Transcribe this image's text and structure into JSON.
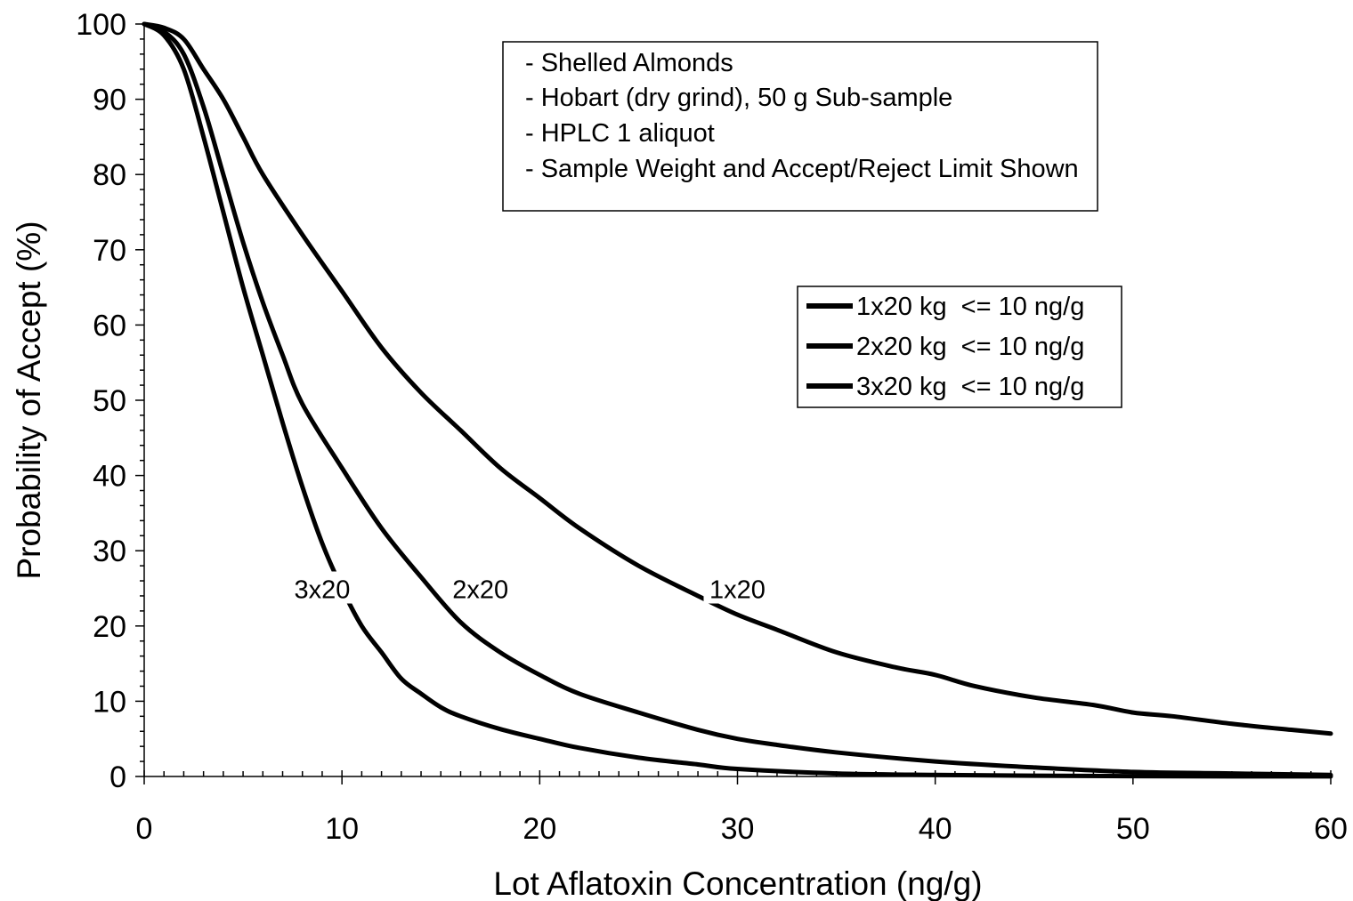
{
  "chart_data": {
    "type": "line",
    "title": "",
    "xlabel": "Lot Aflatoxin Concentration (ng/g)",
    "ylabel": "Probability of Accept (%)",
    "xlim": [
      0,
      60
    ],
    "ylim": [
      0,
      100
    ],
    "xticks": [
      0,
      10,
      20,
      30,
      40,
      50,
      60
    ],
    "yticks": [
      0,
      10,
      20,
      30,
      40,
      50,
      60,
      70,
      80,
      90,
      100
    ],
    "grid": false,
    "line_color": "#000000",
    "annotation_box": {
      "lines": [
        "- Shelled Almonds",
        "- Hobart (dry grind), 50 g Sub-sample",
        "- HPLC 1 aliquot",
        "- Sample Weight and Accept/Reject Limit Shown"
      ]
    },
    "legend": {
      "placement": "right-middle",
      "entries": [
        "1x20 kg  <= 10 ng/g",
        "2x20 kg  <= 10 ng/g",
        "3x20 kg  <= 10 ng/g"
      ]
    },
    "series": [
      {
        "name": "1x20 kg  <= 10 ng/g",
        "curve_label": "1x20",
        "label_at": [
          30,
          25
        ],
        "x": [
          0,
          1,
          2,
          3,
          4,
          5,
          6,
          8,
          10,
          12,
          14,
          16,
          18,
          20,
          22,
          25,
          28,
          30,
          32,
          35,
          38,
          40,
          42,
          45,
          48,
          50,
          52,
          55,
          58,
          60
        ],
        "y": [
          100,
          99.5,
          98,
          94,
          90,
          85,
          80,
          72,
          64.5,
          57,
          51,
          46,
          41,
          37,
          33,
          28,
          24,
          21.5,
          19.5,
          16.5,
          14.5,
          13.5,
          12,
          10.5,
          9.5,
          8.5,
          8,
          7,
          6.2,
          5.7
        ]
      },
      {
        "name": "2x20 kg  <= 10 ng/g",
        "curve_label": "2x20",
        "label_at": [
          17,
          25
        ],
        "x": [
          0,
          1,
          2,
          3,
          4,
          5,
          6,
          7,
          8,
          10,
          12,
          14,
          16,
          18,
          20,
          22,
          25,
          28,
          30,
          32,
          35,
          40,
          45,
          50,
          55,
          60
        ],
        "y": [
          100,
          99,
          96,
          89,
          80,
          71,
          63,
          56,
          49.5,
          41,
          33,
          26.5,
          20.5,
          16.5,
          13.5,
          11,
          8.5,
          6.2,
          5,
          4.2,
          3.2,
          2,
          1.2,
          0.6,
          0.4,
          0.2
        ]
      },
      {
        "name": "3x20 kg  <= 10 ng/g",
        "curve_label": "3x20",
        "label_at": [
          9,
          25
        ],
        "x": [
          0,
          1,
          2,
          3,
          4,
          5,
          6,
          7,
          8,
          9,
          10,
          11,
          12,
          13,
          14,
          15,
          16,
          18,
          20,
          22,
          25,
          28,
          30,
          35,
          40,
          45,
          50,
          55,
          60
        ],
        "y": [
          100,
          98.5,
          94,
          85,
          75,
          65,
          56,
          47,
          38.5,
          31,
          25,
          20,
          16.5,
          13,
          11,
          9.2,
          8,
          6.3,
          5,
          3.8,
          2.5,
          1.6,
          1,
          0.4,
          0.2,
          0.1,
          0.05,
          0.02,
          0.01
        ]
      }
    ]
  }
}
